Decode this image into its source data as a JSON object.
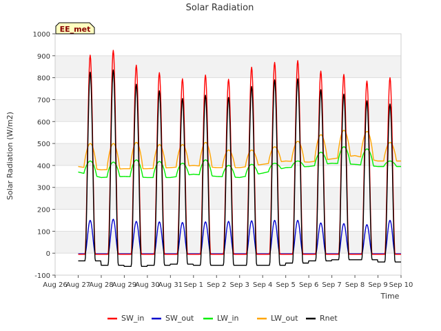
{
  "chart_data": {
    "type": "line",
    "title": "Solar Radiation",
    "xlabel": "Time",
    "ylabel": "Solar Radiation (W/m2)",
    "ylim": [
      -100,
      1000
    ],
    "yticks": [
      -100,
      0,
      100,
      200,
      300,
      400,
      500,
      600,
      700,
      800,
      900,
      1000
    ],
    "xlim": [
      0,
      15
    ],
    "xtick_labels": [
      "Aug 26",
      "Aug 27",
      "Aug 28",
      "Aug 29",
      "Aug 30",
      "Aug 31",
      "Sep 1",
      "Sep 2",
      "Sep 3",
      "Sep 4",
      "Sep 5",
      "Sep 6",
      "Sep 7",
      "Sep 8",
      "Sep 9",
      "Sep 10"
    ],
    "station_label": "EE_met",
    "grid": "horizontal bands",
    "legend_position": "bottom",
    "colors": {
      "SW_in": "#ff0000",
      "SW_out": "#0000cc",
      "LW_in": "#00ee00",
      "LW_out": "#ffa500",
      "Rnet": "#000000"
    },
    "days": [
      "Aug 27",
      "Aug 28",
      "Aug 29",
      "Aug 30",
      "Aug 31",
      "Sep 1",
      "Sep 2",
      "Sep 3",
      "Sep 4",
      "Sep 5",
      "Sep 6",
      "Sep 7",
      "Sep 8",
      "Sep 9"
    ],
    "series": [
      {
        "name": "SW_in",
        "daily_peak": [
          903,
          925,
          857,
          823,
          795,
          812,
          793,
          848,
          870,
          878,
          830,
          815,
          785,
          800
        ],
        "night_value": -5
      },
      {
        "name": "SW_out",
        "daily_peak": [
          150,
          155,
          145,
          143,
          140,
          143,
          145,
          148,
          150,
          150,
          138,
          135,
          130,
          150
        ],
        "night_value": -3
      },
      {
        "name": "LW_in",
        "daily_peak": [
          420,
          415,
          425,
          418,
          410,
          425,
          400,
          405,
          410,
          420,
          460,
          485,
          475,
          420
        ],
        "night_value": [
          370,
          345,
          350,
          345,
          345,
          360,
          350,
          345,
          365,
          390,
          395,
          410,
          405,
          395
        ]
      },
      {
        "name": "LW_out",
        "daily_peak": [
          500,
          500,
          505,
          495,
          495,
          505,
          470,
          470,
          485,
          510,
          540,
          560,
          555,
          505
        ],
        "night_value": [
          395,
          380,
          385,
          385,
          390,
          400,
          390,
          390,
          405,
          420,
          415,
          430,
          445,
          420
        ]
      },
      {
        "name": "Rnet",
        "daily_peak": [
          825,
          835,
          770,
          740,
          705,
          720,
          710,
          760,
          790,
          795,
          745,
          725,
          695,
          680
        ],
        "night_value": [
          -35,
          -55,
          -60,
          -55,
          -50,
          -55,
          -55,
          -55,
          -55,
          -45,
          -35,
          -30,
          -30,
          -40
        ]
      }
    ]
  }
}
